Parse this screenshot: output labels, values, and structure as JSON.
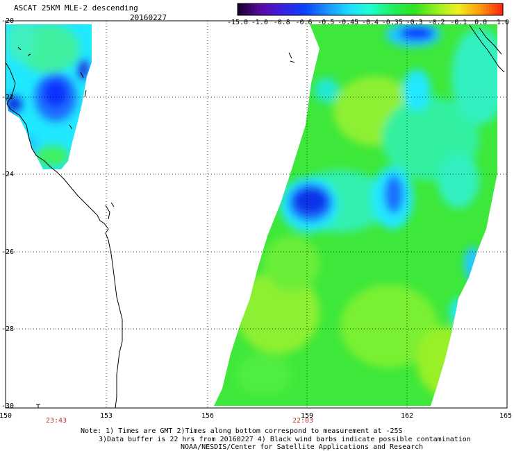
{
  "header": {
    "title": "ASCAT 25KM MLE-2 descending",
    "date": "20160227"
  },
  "colorbar": {
    "labels": [
      "-15.0",
      "-1.0",
      "-0.8",
      "-0.6",
      "-0.5",
      "-0.45",
      "-0.4",
      "-0.35",
      "-0.3",
      "-0.2",
      "-0.1",
      "0.0",
      "1.0"
    ],
    "colors": [
      "#1a0030",
      "#5a0aa0",
      "#3a20e0",
      "#0a40ff",
      "#1a90ff",
      "#20d8ff",
      "#20ffd0",
      "#20f060",
      "#30e020",
      "#90f020",
      "#f0f020",
      "#ff9a10",
      "#ff2a10"
    ]
  },
  "axes": {
    "lon_ticks": [
      "150",
      "153",
      "156",
      "159",
      "162",
      "165"
    ],
    "lat_ticks": [
      "-20",
      "-22",
      "-24",
      "-26",
      "-28",
      "-30"
    ]
  },
  "times": {
    "left": "23:43",
    "right": "22:03"
  },
  "notes": {
    "line1": "Note: 1) Times are GMT 2)Times along bottom correspond to measurement at -25S",
    "line2": "3)Data buffer is 22 hrs from 20160227 4) Black wind barbs indicate possible contamination",
    "line3": "NOAA/NESDIS/Center for Satellite Applications and Research"
  },
  "legend_colors": {
    "green": "#20f060",
    "cyan": "#20e8ff",
    "blue": "#1030ff",
    "yellowgreen": "#8ef020"
  }
}
